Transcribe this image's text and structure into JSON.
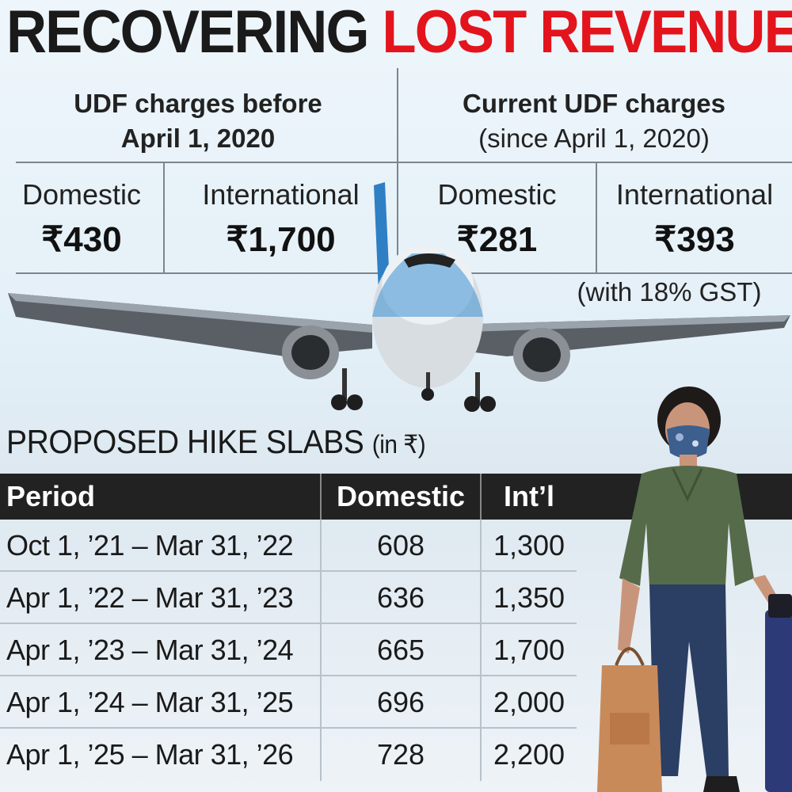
{
  "headline": {
    "part1": "RECOVERING",
    "part2": "LOST REVENUE",
    "colors": {
      "dark": "#1a1a1a",
      "red": "#e3141c"
    }
  },
  "udf": {
    "before": {
      "title_line1": "UDF charges before",
      "title_line2": "April 1, 2020",
      "domestic_label": "Domestic",
      "domestic_value": "₹430",
      "international_label": "International",
      "international_value": "₹1,700"
    },
    "current": {
      "title_line1": "Current UDF charges",
      "title_line2": "(since April 1, 2020)",
      "domestic_label": "Domestic",
      "domestic_value": "₹281",
      "international_label": "International",
      "international_value": "₹393",
      "note": "(with 18% GST)"
    }
  },
  "slabs": {
    "title": "PROPOSED HIKE SLABS",
    "unit": "(in ₹)",
    "headers": {
      "period": "Period",
      "domestic": "Domestic",
      "intl": "Int’l"
    },
    "rows": [
      {
        "period": "Oct 1, ’21 – Mar 31, ’22",
        "domestic": "608",
        "intl": "1,300"
      },
      {
        "period": "Apr 1, ’22 – Mar 31, ’23",
        "domestic": "636",
        "intl": "1,350"
      },
      {
        "period": "Apr 1, ’23 – Mar 31, ’24",
        "domestic": "665",
        "intl": "1,700"
      },
      {
        "period": "Apr 1, ’24 – Mar 31, ’25",
        "domestic": "696",
        "intl": "2,000"
      },
      {
        "period": "Apr 1, ’25 – Mar 31, ’26",
        "domestic": "728",
        "intl": "2,200"
      }
    ]
  },
  "images": {
    "plane": "airplane-photo",
    "traveller": "masked-traveller-photo"
  }
}
